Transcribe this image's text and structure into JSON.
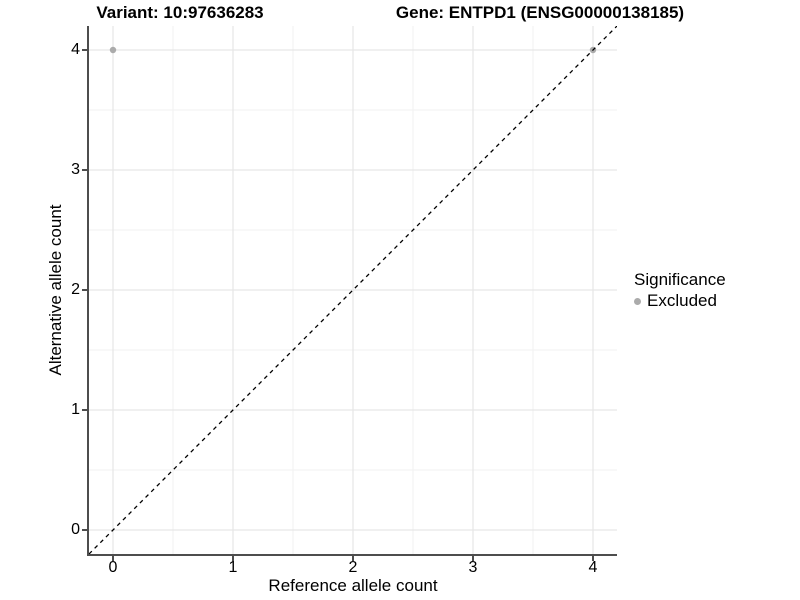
{
  "chart_data": {
    "type": "scatter",
    "titles": {
      "left": "Variant: 10:97636283",
      "right": "Gene: ENTPD1 (ENSG00000138185)"
    },
    "xlabel": "Reference allele count",
    "ylabel": "Alternative allele count",
    "xlim": [
      -0.2,
      4.2
    ],
    "ylim": [
      -0.2,
      4.2
    ],
    "x_ticks": [
      0,
      1,
      2,
      3,
      4
    ],
    "y_ticks": [
      0,
      1,
      2,
      3,
      4
    ],
    "grid": {
      "major": true,
      "minor": true,
      "major_color": "#e6e6e6",
      "minor_color": "#f2f2f2"
    },
    "reference_line": {
      "type": "identity",
      "style": "dashed",
      "color": "#000000"
    },
    "series": [
      {
        "name": "Excluded",
        "color": "#ababab",
        "point_radius": 3.2,
        "points": [
          {
            "x": 0,
            "y": 4
          },
          {
            "x": 4,
            "y": 4
          }
        ]
      }
    ],
    "legend": {
      "title": "Significance",
      "position": "right",
      "entries": [
        {
          "label": "Excluded",
          "color": "#ababab"
        }
      ]
    },
    "colors": {
      "axis": "#4d4d4d",
      "background": "#ffffff",
      "text": "#000000"
    }
  }
}
